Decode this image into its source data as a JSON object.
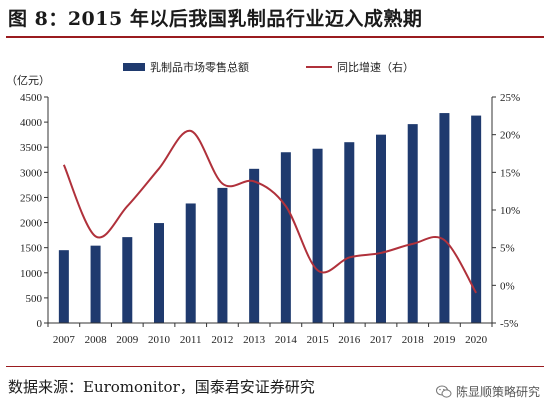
{
  "figure": {
    "title": "图 8：2015 年以后我国乳制品行业迈入成熟期",
    "source": "数据来源：Euromonitor，国泰君安证券研究",
    "watermark": "陈显顺策略研究",
    "watermark_icon": "wechat-icon"
  },
  "chart_data": {
    "type": "bar",
    "categories": [
      "2007",
      "2008",
      "2009",
      "2010",
      "2011",
      "2012",
      "2013",
      "2014",
      "2015",
      "2016",
      "2017",
      "2018",
      "2019",
      "2020"
    ],
    "series": [
      {
        "name": "乳制品市场零售总额",
        "type": "bar",
        "axis": "left",
        "color": "#1f3a6e",
        "values": [
          1450,
          1540,
          1710,
          1990,
          2380,
          2690,
          3070,
          3400,
          3470,
          3600,
          3750,
          3960,
          4180,
          4130
        ]
      },
      {
        "name": "同比增速（右）",
        "type": "line",
        "axis": "right",
        "color": "#b0313b",
        "values": [
          16.0,
          6.5,
          10.5,
          15.5,
          20.5,
          13.5,
          13.8,
          10.5,
          2.0,
          3.7,
          4.3,
          5.5,
          6.0,
          -1.0
        ]
      }
    ],
    "y_left": {
      "unit": "（亿元）",
      "min": 0,
      "max": 4500,
      "ticks": [
        "0",
        "500",
        "1000",
        "1500",
        "2000",
        "2500",
        "3000",
        "3500",
        "4000",
        "4500"
      ]
    },
    "y_right": {
      "min": -5,
      "max": 25,
      "ticks": [
        "-5%",
        "0%",
        "5%",
        "10%",
        "15%",
        "20%",
        "25%"
      ]
    },
    "legend_position": "top",
    "grid": false
  }
}
